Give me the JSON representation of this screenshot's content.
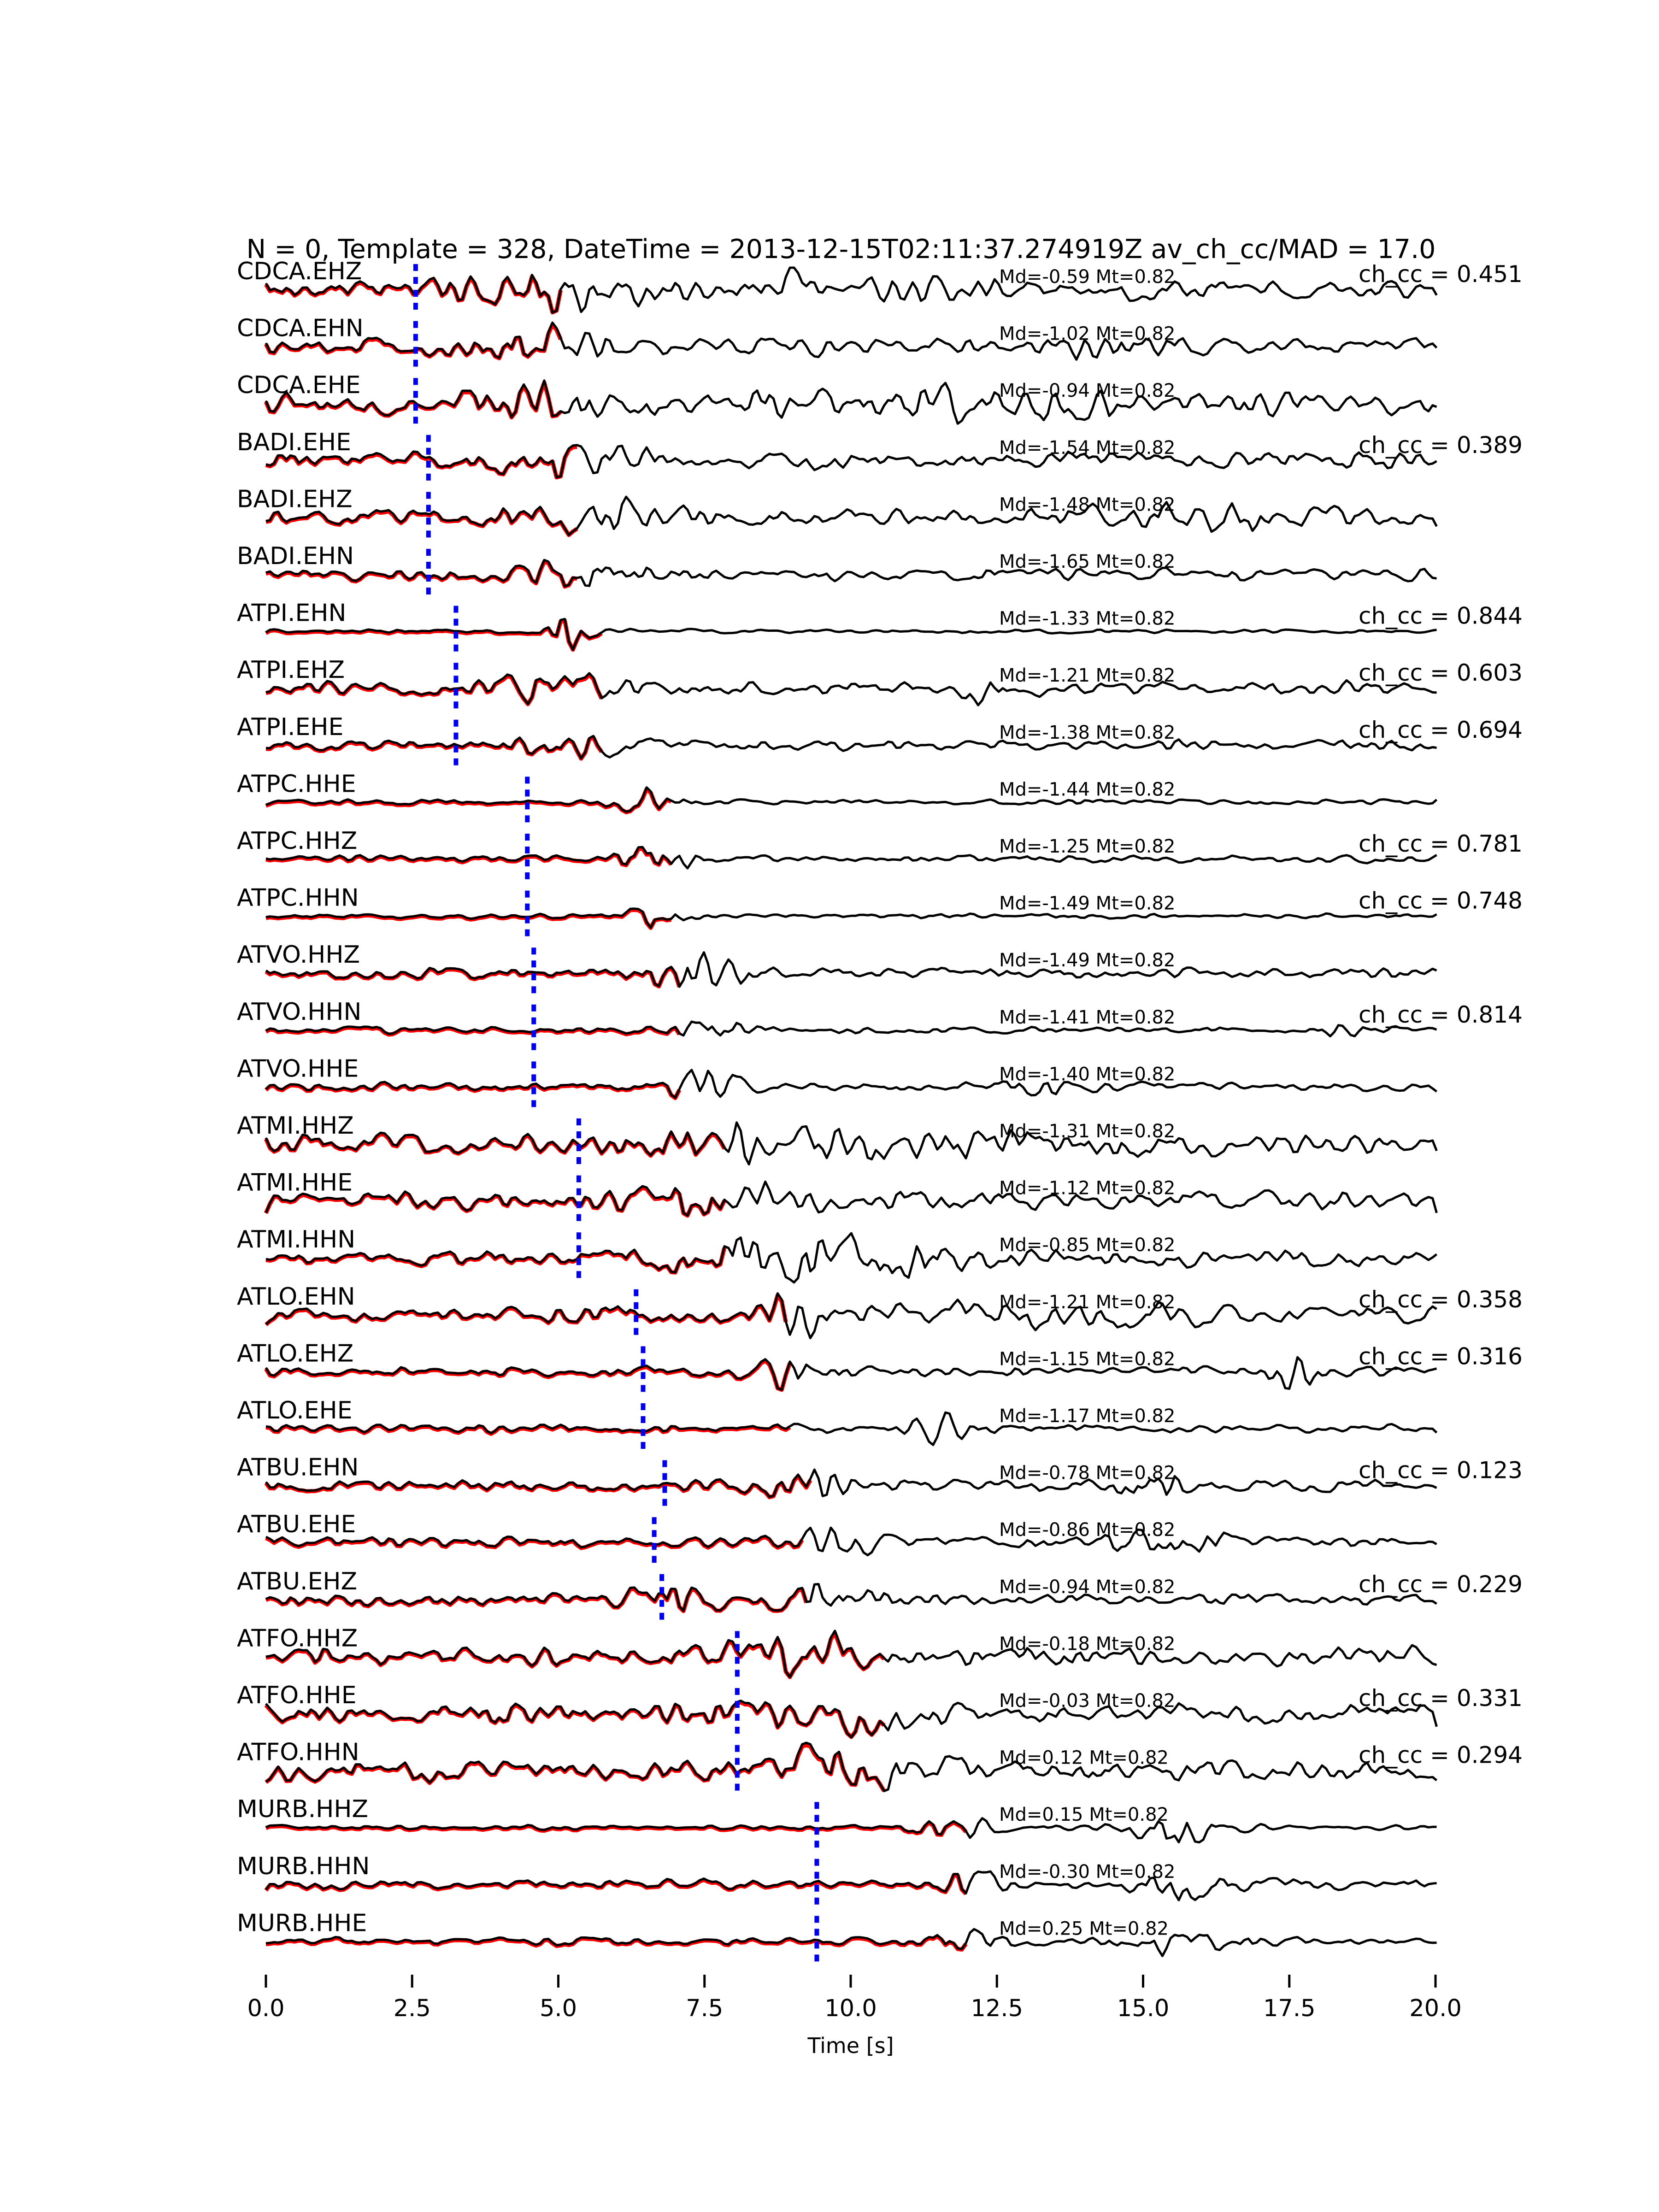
{
  "chart_data": {
    "type": "line",
    "title": "N = 0, Template = 328, DateTime = 2013-12-15T02:11:37.274919Z av_ch_cc/MAD = 17.0",
    "xlabel": "Time [s]",
    "xlim": [
      0.0,
      20.0
    ],
    "x_ticks": [
      "0.0",
      "2.5",
      "5.0",
      "7.5",
      "10.0",
      "12.5",
      "15.0",
      "17.5",
      "20.0"
    ],
    "grid": false,
    "legend": null,
    "colors": {
      "trace": "#000000",
      "template_overlay": "#ff0000",
      "pick_line": "#0000ee",
      "background": "#ffffff"
    },
    "traces": [
      {
        "label": "CDCA.EHZ",
        "annotation": "Md=-0.59 Mt=0.82",
        "ch_cc": "ch_cc = 0.451",
        "pick_s": 2.56,
        "template_end_s": 5.1,
        "noise": 0.45,
        "bursts": [
          [
            4.6,
            1.0,
            0.7
          ],
          [
            9.0,
            0.45,
            3.0
          ]
        ],
        "seed": 101
      },
      {
        "label": "CDCA.EHN",
        "annotation": "Md=-1.02 Mt=0.82",
        "ch_cc": null,
        "pick_s": 2.56,
        "template_end_s": 5.1,
        "noise": 0.45,
        "bursts": [
          [
            4.7,
            0.8,
            0.7
          ],
          [
            14.3,
            0.55,
            0.4
          ]
        ],
        "seed": 102
      },
      {
        "label": "CDCA.EHE",
        "annotation": "Md=-0.94 Mt=0.82",
        "ch_cc": null,
        "pick_s": 2.56,
        "template_end_s": 5.1,
        "noise": 0.52,
        "bursts": [
          [
            4.6,
            0.85,
            0.8
          ],
          [
            12.0,
            0.45,
            3.5
          ]
        ],
        "seed": 103
      },
      {
        "label": "BADI.EHE",
        "annotation": "Md=-1.54 Mt=0.82",
        "ch_cc": "ch_cc = 0.389",
        "pick_s": 2.78,
        "template_end_s": 5.33,
        "noise": 0.45,
        "bursts": [
          [
            5.2,
            0.9,
            0.8
          ]
        ],
        "seed": 104
      },
      {
        "label": "BADI.EHZ",
        "annotation": "Md=-1.48 Mt=0.82",
        "ch_cc": null,
        "pick_s": 2.78,
        "template_end_s": 5.33,
        "noise": 0.45,
        "bursts": [
          [
            5.4,
            0.85,
            0.8
          ],
          [
            16.5,
            0.4,
            1.5
          ]
        ],
        "seed": 105
      },
      {
        "label": "BADI.EHN",
        "annotation": "Md=-1.65 Mt=0.82",
        "ch_cc": null,
        "pick_s": 2.78,
        "template_end_s": 5.33,
        "noise": 0.32,
        "bursts": [
          [
            5.3,
            0.6,
            0.8
          ]
        ],
        "seed": 106
      },
      {
        "label": "ATPI.EHN",
        "annotation": "Md=-1.33 Mt=0.82",
        "ch_cc": "ch_cc = 0.844",
        "pick_s": 3.25,
        "template_end_s": 5.8,
        "noise": 0.1,
        "bursts": [
          [
            5.2,
            1.0,
            0.25
          ]
        ],
        "seed": 107
      },
      {
        "label": "ATPI.EHZ",
        "annotation": "Md=-1.21 Mt=0.82",
        "ch_cc": "ch_cc = 0.603",
        "pick_s": 3.25,
        "template_end_s": 5.8,
        "noise": 0.35,
        "bursts": [
          [
            5.0,
            0.8,
            0.7
          ],
          [
            12.3,
            0.9,
            0.25
          ]
        ],
        "seed": 108
      },
      {
        "label": "ATPI.EHE",
        "annotation": "Md=-1.38 Mt=0.82",
        "ch_cc": "ch_cc = 0.694",
        "pick_s": 3.25,
        "template_end_s": 5.8,
        "noise": 0.28,
        "bursts": [
          [
            5.1,
            0.6,
            0.8
          ]
        ],
        "seed": 109
      },
      {
        "label": "ATPC.HHE",
        "annotation": "Md=-1.44 Mt=0.82",
        "ch_cc": null,
        "pick_s": 4.47,
        "template_end_s": 7.0,
        "noise": 0.13,
        "bursts": [
          [
            6.6,
            1.0,
            0.35
          ]
        ],
        "seed": 110
      },
      {
        "label": "ATPC.HHZ",
        "annotation": "Md=-1.25 Mt=0.82",
        "ch_cc": "ch_cc = 0.781",
        "pick_s": 4.47,
        "template_end_s": 7.0,
        "noise": 0.18,
        "bursts": [
          [
            6.6,
            0.9,
            0.4
          ]
        ],
        "seed": 111
      },
      {
        "label": "ATPC.HHN",
        "annotation": "Md=-1.49 Mt=0.82",
        "ch_cc": "ch_cc = 0.748",
        "pick_s": 4.47,
        "template_end_s": 7.0,
        "noise": 0.13,
        "bursts": [
          [
            6.7,
            1.0,
            0.3
          ]
        ],
        "seed": 112
      },
      {
        "label": "ATVO.HHZ",
        "annotation": "Md=-1.49 Mt=0.82",
        "ch_cc": null,
        "pick_s": 4.58,
        "template_end_s": 7.1,
        "noise": 0.28,
        "bursts": [
          [
            7.3,
            1.0,
            0.5
          ]
        ],
        "seed": 113
      },
      {
        "label": "ATVO.HHN",
        "annotation": "Md=-1.41 Mt=0.82",
        "ch_cc": "ch_cc = 0.814",
        "pick_s": 4.58,
        "template_end_s": 7.1,
        "noise": 0.18,
        "bursts": [
          [
            7.5,
            0.7,
            0.4
          ],
          [
            18.4,
            0.5,
            0.3
          ]
        ],
        "seed": 114
      },
      {
        "label": "ATVO.HHE",
        "annotation": "Md=-1.40 Mt=0.82",
        "ch_cc": null,
        "pick_s": 4.58,
        "template_end_s": 7.1,
        "noise": 0.22,
        "bursts": [
          [
            7.5,
            0.75,
            0.5
          ],
          [
            13.5,
            0.4,
            0.6
          ]
        ],
        "seed": 115
      },
      {
        "label": "ATMI.HHZ",
        "annotation": "Md=-1.31 Mt=0.82",
        "ch_cc": null,
        "pick_s": 5.35,
        "template_end_s": 7.9,
        "noise": 0.5,
        "bursts": [
          [
            7.6,
            0.9,
            0.8
          ],
          [
            12.0,
            0.5,
            3.0
          ]
        ],
        "seed": 116
      },
      {
        "label": "ATMI.HHE",
        "annotation": "Md=-1.12 Mt=0.82",
        "ch_cc": null,
        "pick_s": 5.35,
        "template_end_s": 7.9,
        "noise": 0.5,
        "bursts": [
          [
            7.8,
            0.8,
            0.9
          ]
        ],
        "seed": 117
      },
      {
        "label": "ATMI.HHN",
        "annotation": "Md=-0.85 Mt=0.82",
        "ch_cc": null,
        "pick_s": 5.35,
        "template_end_s": 7.9,
        "noise": 0.42,
        "bursts": [
          [
            8.0,
            0.8,
            0.9
          ],
          [
            10.5,
            0.7,
            1.5
          ]
        ],
        "seed": 118
      },
      {
        "label": "ATLO.EHN",
        "annotation": "Md=-1.21 Mt=0.82",
        "ch_cc": "ch_cc = 0.358",
        "pick_s": 6.33,
        "template_end_s": 8.9,
        "noise": 0.38,
        "bursts": [
          [
            8.9,
            0.9,
            0.6
          ],
          [
            14.0,
            0.45,
            2.0
          ]
        ],
        "seed": 119
      },
      {
        "label": "ATLO.EHZ",
        "annotation": "Md=-1.15 Mt=0.82",
        "ch_cc": "ch_cc = 0.316",
        "pick_s": 6.45,
        "template_end_s": 9.0,
        "noise": 0.26,
        "bursts": [
          [
            9.0,
            0.8,
            0.5
          ],
          [
            17.6,
            0.7,
            0.3
          ]
        ],
        "seed": 120
      },
      {
        "label": "ATLO.EHE",
        "annotation": "Md=-1.17 Mt=0.82",
        "ch_cc": null,
        "pick_s": 6.45,
        "template_end_s": 9.0,
        "noise": 0.22,
        "bursts": [
          [
            11.5,
            0.8,
            0.3
          ]
        ],
        "seed": 121
      },
      {
        "label": "ATBU.EHN",
        "annotation": "Md=-0.78 Mt=0.82",
        "ch_cc": "ch_cc = 0.123",
        "pick_s": 6.82,
        "template_end_s": 9.35,
        "noise": 0.3,
        "bursts": [
          [
            9.3,
            0.8,
            0.6
          ],
          [
            15.2,
            0.6,
            0.5
          ]
        ],
        "seed": 122
      },
      {
        "label": "ATBU.EHE",
        "annotation": "Md=-0.86 Mt=0.82",
        "ch_cc": null,
        "pick_s": 6.64,
        "template_end_s": 9.2,
        "noise": 0.28,
        "bursts": [
          [
            9.7,
            0.7,
            0.6
          ],
          [
            15.5,
            0.5,
            0.8
          ]
        ],
        "seed": 123
      },
      {
        "label": "ATBU.EHZ",
        "annotation": "Md=-0.94 Mt=0.82",
        "ch_cc": "ch_cc = 0.229",
        "pick_s": 6.77,
        "template_end_s": 9.3,
        "noise": 0.34,
        "bursts": [
          [
            7.0,
            0.7,
            0.5
          ],
          [
            9.6,
            0.75,
            0.6
          ]
        ],
        "seed": 124
      },
      {
        "label": "ATFO.HHZ",
        "annotation": "Md=-0.18 Mt=0.82",
        "ch_cc": null,
        "pick_s": 8.06,
        "template_end_s": 10.6,
        "noise": 0.5,
        "bursts": [
          [
            9.2,
            0.85,
            0.9
          ]
        ],
        "seed": 125
      },
      {
        "label": "ATFO.HHE",
        "annotation": "Md=-0.03 Mt=0.82",
        "ch_cc": "ch_cc = 0.331",
        "pick_s": 8.06,
        "template_end_s": 10.6,
        "noise": 0.55,
        "bursts": [
          [
            9.6,
            0.9,
            0.9
          ]
        ],
        "seed": 126
      },
      {
        "label": "ATFO.HHN",
        "annotation": "Md=0.12 Mt=0.82",
        "ch_cc": "ch_cc = 0.294",
        "pick_s": 8.06,
        "template_end_s": 10.6,
        "noise": 0.55,
        "bursts": [
          [
            9.9,
            0.85,
            0.8
          ]
        ],
        "seed": 127
      },
      {
        "label": "MURB.HHZ",
        "annotation": "Md=0.15 Mt=0.82",
        "ch_cc": null,
        "pick_s": 9.42,
        "template_end_s": 11.97,
        "noise": 0.12,
        "bursts": [
          [
            11.8,
            0.8,
            0.4
          ],
          [
            15.6,
            1.0,
            0.6
          ]
        ],
        "seed": 128
      },
      {
        "label": "MURB.HHN",
        "annotation": "Md=-0.30 Mt=0.82",
        "ch_cc": null,
        "pick_s": 9.42,
        "template_end_s": 11.97,
        "noise": 0.25,
        "bursts": [
          [
            12.1,
            0.8,
            0.5
          ],
          [
            15.6,
            0.8,
            0.6
          ]
        ],
        "seed": 129
      },
      {
        "label": "MURB.HHE",
        "annotation": "Md=0.25 Mt=0.82",
        "ch_cc": null,
        "pick_s": 9.42,
        "template_end_s": 11.97,
        "noise": 0.2,
        "bursts": [
          [
            12.0,
            0.7,
            0.5
          ],
          [
            15.6,
            0.6,
            0.7
          ]
        ],
        "seed": 130
      }
    ]
  }
}
